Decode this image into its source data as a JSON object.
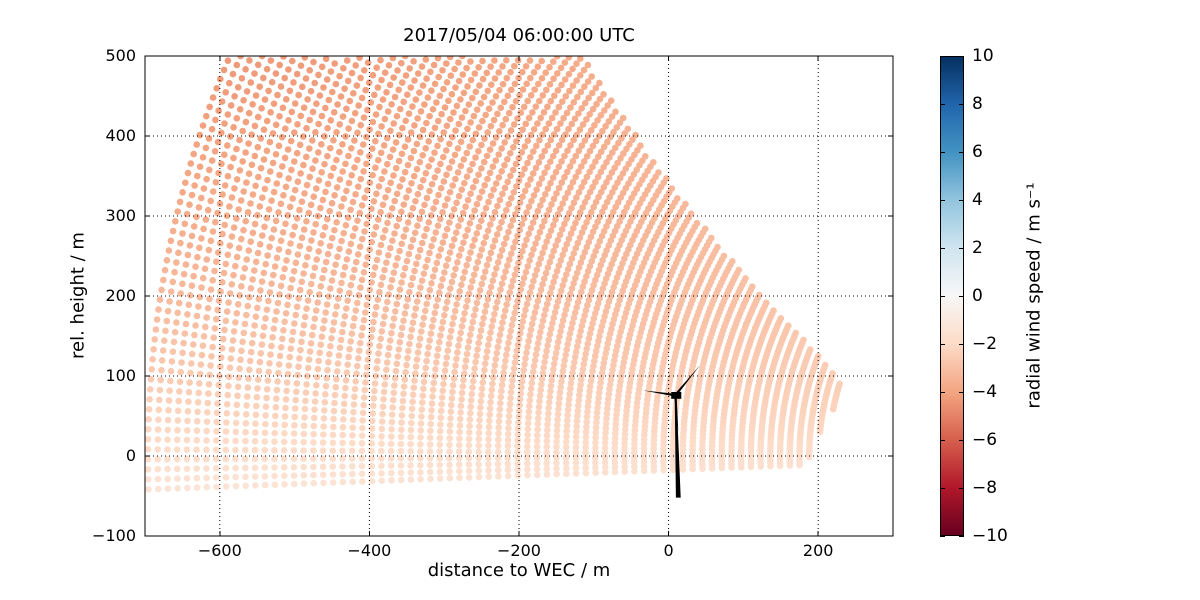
{
  "chart_data": {
    "type": "scatter",
    "title": "2017/05/04 06:00:00 UTC",
    "xlabel": "distance to WEC / m",
    "ylabel": "rel. height / m",
    "xlim": [
      -700,
      300
    ],
    "ylim": [
      -100,
      500
    ],
    "xticks": {
      "values": [
        -600,
        -400,
        -200,
        0,
        200
      ],
      "labels": [
        "−600",
        "−400",
        "−200",
        "0",
        "200"
      ]
    },
    "yticks": {
      "values": [
        500,
        400,
        300,
        200,
        100,
        0,
        -100
      ],
      "labels": [
        "500",
        "400",
        "300",
        "200",
        "100",
        "0",
        "−100"
      ]
    },
    "grid": {
      "style": "dotted",
      "color": "#000000"
    },
    "background": "#ffffff",
    "colorbar": {
      "label": "radial wind speed / m s⁻¹",
      "vmin": -10,
      "vmax": 10,
      "cmap": "RdBu",
      "anchors": [
        "#67001f",
        "#b2182b",
        "#d6604d",
        "#f4a582",
        "#fddbc7",
        "#f7f7f7",
        "#d1e5f0",
        "#92c5de",
        "#4393c3",
        "#2166ac",
        "#053061"
      ],
      "ticks": {
        "values": [
          10,
          8,
          6,
          4,
          2,
          0,
          -2,
          -4,
          -6,
          -8,
          -10
        ],
        "labels": [
          "10",
          "8",
          "6",
          "4",
          "2",
          "0",
          "−2",
          "−4",
          "−6",
          "−8",
          "−10"
        ]
      }
    },
    "scan": {
      "comment": "Lidar RHI fan: range-gate arcs concentric about origin; radial speeds are all weakly negative (light red tones, about -0.5 to -4.5 m/s), palest near the ground, most saturated in the upper-left far field.",
      "origin_m": [
        500,
        0
      ],
      "elevation_min_deg": -2.0,
      "elevation_max_deg": 39.4,
      "elevation_step_deg": 0.6,
      "range_gate_m": 13,
      "range_max_m": 1200,
      "rmin_base_m": 277,
      "rmin_center_deg": 15.5,
      "rmin_quad": 0.913,
      "rmin_lin": 2.2,
      "dot_radius_px": 3.3
    },
    "wind_model": {
      "comment": "radial speed v = -U(h)*cos(elevation); U(h)=uref*((h+offset)/href)^alpha",
      "uref": 4.8,
      "alpha": 0.55,
      "offset": 100,
      "href": 600
    },
    "turbine": {
      "color": "#000000",
      "hub_m": [
        9,
        76
      ],
      "hub_radius_m": 3,
      "nacelle_m": [
        [
          3.5,
          80
        ],
        [
          17,
          80
        ],
        [
          17,
          71.5
        ],
        [
          3.5,
          71.5
        ]
      ],
      "tower_m": [
        [
          8.2,
          77
        ],
        [
          10.4,
          77
        ],
        [
          16.2,
          -52
        ],
        [
          9.7,
          -52
        ]
      ],
      "blade_root_halfwidth_m": 1.7,
      "blade_tips_m": [
        [
          42.5,
          114
        ],
        [
          -34.5,
          82
        ],
        [
          13,
          30
        ]
      ]
    }
  },
  "layout_note": "single axes plot with right-hand colorbar"
}
